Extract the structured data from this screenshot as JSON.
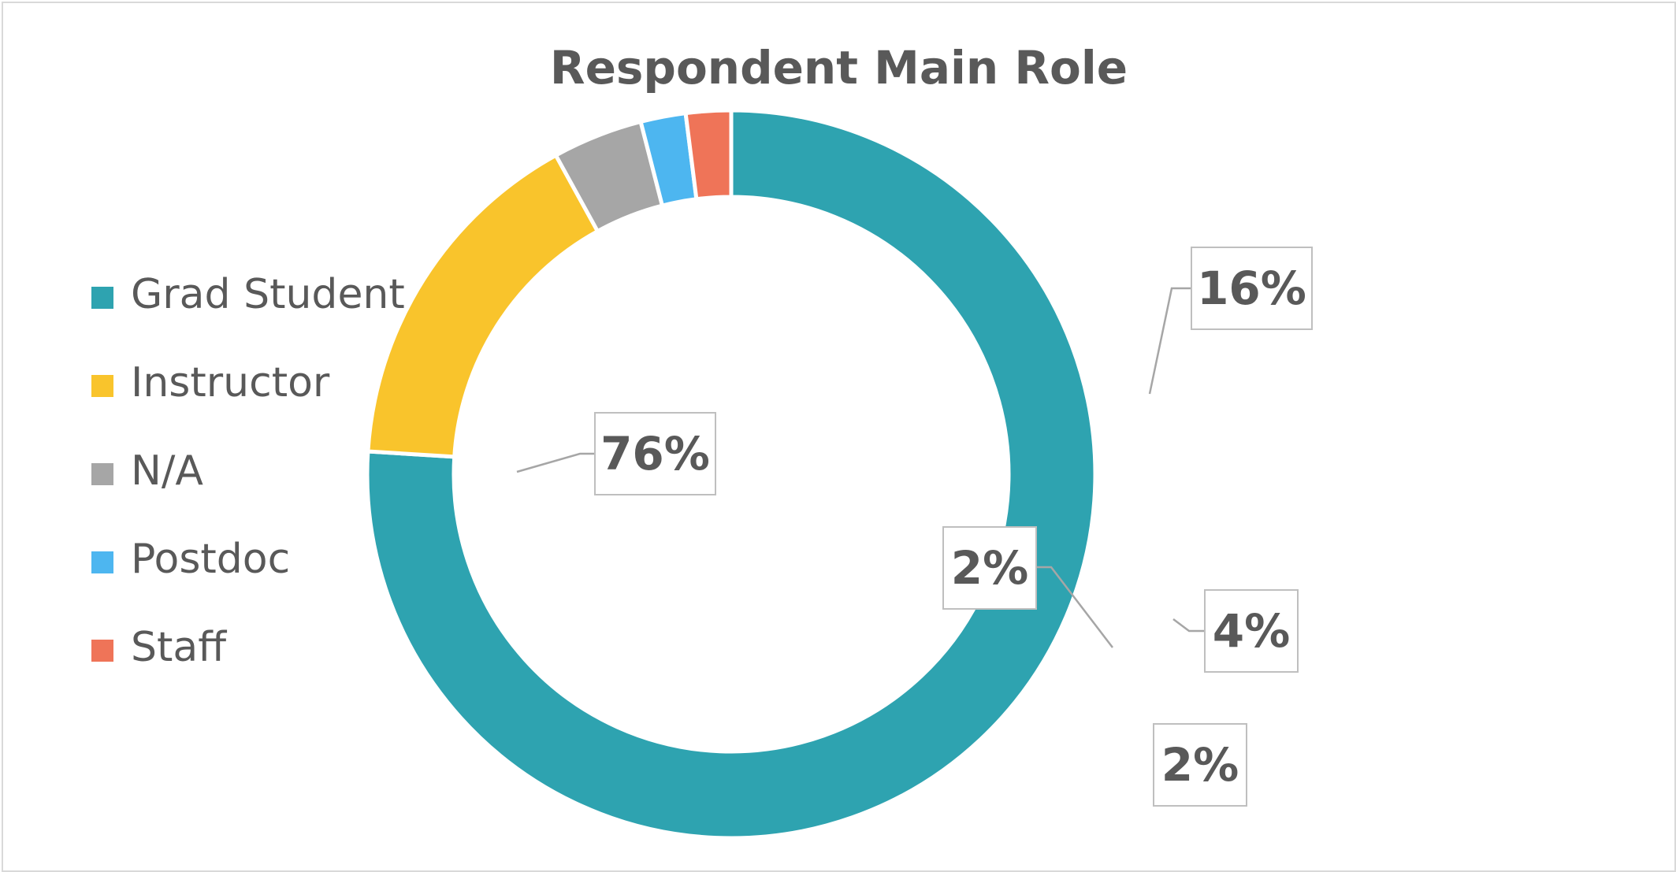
{
  "chart_data": {
    "type": "pie",
    "title": "Respondent Main Role",
    "donut": true,
    "legend_position": "left",
    "categories": [
      "Grad Student",
      "Instructor",
      "N/A",
      "Postdoc",
      "Staff"
    ],
    "values": [
      76,
      16,
      4,
      2,
      2
    ],
    "labels": [
      "76%",
      "16%",
      "4%",
      "2%",
      "2%"
    ],
    "colors": [
      "#2ea3b0",
      "#f9c42c",
      "#a6a6a6",
      "#4db6f0",
      "#ef7458"
    ]
  }
}
